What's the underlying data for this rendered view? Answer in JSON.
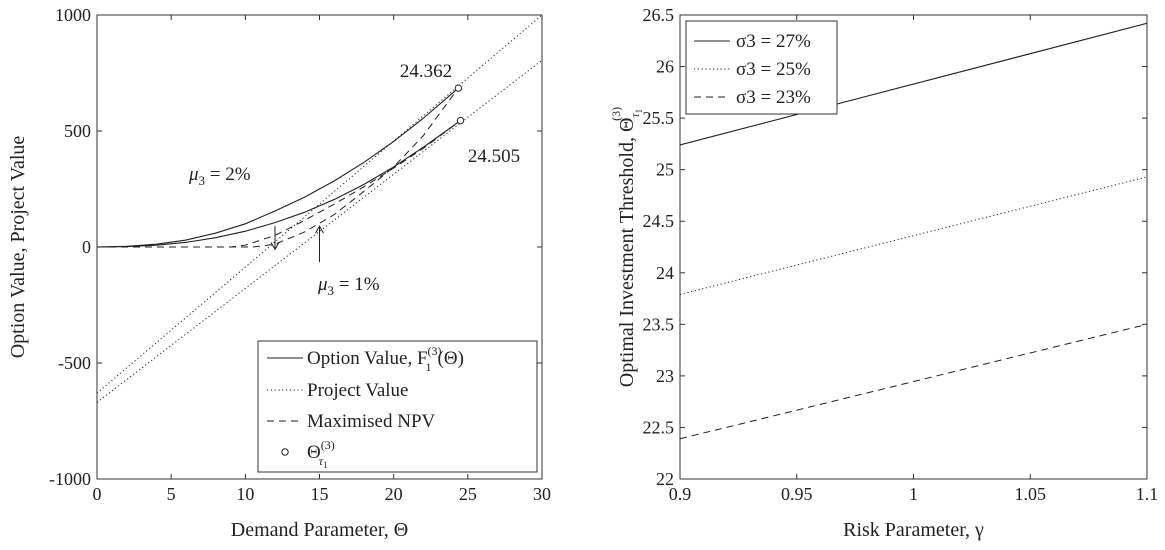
{
  "chart_data": [
    {
      "type": "line",
      "xlabel": "Demand Parameter, Θ",
      "ylabel": "Option Value, Project Value",
      "xlim": [
        0,
        30
      ],
      "ylim": [
        -1000,
        1000
      ],
      "xticks": [
        "0",
        "5",
        "10",
        "15",
        "20",
        "25",
        "30"
      ],
      "yticks": [
        "-1000",
        "-500",
        "0",
        "500",
        "1000"
      ],
      "grid": false,
      "legend_position": "bottom-right",
      "legend": [
        {
          "label": "Option Value, F",
          "style": "solid"
        },
        {
          "label": "Project Value",
          "style": "dotted"
        },
        {
          "label": "Maximised NPV",
          "style": "dashed"
        },
        {
          "label": "Θ",
          "style": "circle-marker"
        }
      ],
      "threshold_labels": [
        {
          "text": "24.362",
          "x": 24.362,
          "y": 685
        },
        {
          "text": "24.505",
          "x": 24.505,
          "y": 545
        }
      ],
      "annotations": [
        {
          "text": "μ3 = 2%",
          "arrow_from": [
            12,
            90
          ],
          "arrow_to": [
            12,
            -10
          ]
        },
        {
          "text": "μ3 = 1%",
          "arrow_from": [
            15,
            -65
          ],
          "arrow_to": [
            15,
            90
          ]
        }
      ],
      "series": [
        {
          "style": "solid",
          "points": [
            [
              0,
              0
            ],
            [
              2,
              3
            ],
            [
              4,
              12
            ],
            [
              6,
              30
            ],
            [
              8,
              60
            ],
            [
              10,
              100
            ],
            [
              12,
              155
            ],
            [
              14,
              215
            ],
            [
              16,
              285
            ],
            [
              18,
              365
            ],
            [
              20,
              455
            ],
            [
              22,
              555
            ],
            [
              24.362,
              685
            ]
          ]
        },
        {
          "style": "solid",
          "points": [
            [
              0,
              0
            ],
            [
              2,
              2
            ],
            [
              4,
              8
            ],
            [
              6,
              20
            ],
            [
              8,
              40
            ],
            [
              10,
              68
            ],
            [
              12,
              105
            ],
            [
              14,
              150
            ],
            [
              16,
              205
            ],
            [
              18,
              270
            ],
            [
              20,
              345
            ],
            [
              22,
              430
            ],
            [
              24.505,
              545
            ]
          ]
        },
        {
          "style": "dotted",
          "points": [
            [
              0,
              -630
            ],
            [
              30,
              1000
            ]
          ]
        },
        {
          "style": "dotted",
          "points": [
            [
              0,
              -670
            ],
            [
              30,
              805
            ]
          ]
        },
        {
          "style": "dashed",
          "points": [
            [
              0,
              0
            ],
            [
              10.5,
              0
            ],
            [
              12,
              12
            ],
            [
              14,
              65
            ],
            [
              16,
              140
            ],
            [
              18,
              240
            ],
            [
              20,
              345
            ],
            [
              22,
              480
            ],
            [
              24.362,
              685
            ]
          ]
        },
        {
          "style": "dashed",
          "points": [
            [
              0,
              0
            ],
            [
              9,
              0
            ],
            [
              10,
              8
            ],
            [
              12,
              50
            ],
            [
              14,
              115
            ],
            [
              16,
              185
            ],
            [
              18,
              260
            ],
            [
              20,
              340
            ],
            [
              22,
              425
            ],
            [
              24.505,
              545
            ]
          ]
        }
      ],
      "markers": [
        [
          24.362,
          685
        ],
        [
          24.505,
          545
        ]
      ]
    },
    {
      "type": "line",
      "xlabel": "Risk Parameter, γ",
      "ylabel": "Optimal Investment Threshold, Θ",
      "xlim": [
        0.9,
        1.1
      ],
      "ylim": [
        22,
        26.5
      ],
      "xticks": [
        "0.9",
        "0.95",
        "1",
        "1.05",
        "1.1"
      ],
      "yticks": [
        "22",
        "22.5",
        "23",
        "23.5",
        "24",
        "24.5",
        "25",
        "25.5",
        "26",
        "26.5"
      ],
      "grid": false,
      "legend_position": "top-left",
      "legend": [
        {
          "label": "σ3 = 27%",
          "style": "solid"
        },
        {
          "label": "σ3 = 25%",
          "style": "dotted"
        },
        {
          "label": "σ3 = 23%",
          "style": "dashed"
        }
      ],
      "series": [
        {
          "name": "σ3 = 27%",
          "style": "solid",
          "x": [
            0.9,
            1.1
          ],
          "values": [
            25.24,
            26.42
          ]
        },
        {
          "name": "σ3 = 25%",
          "style": "dotted",
          "x": [
            0.9,
            1.1
          ],
          "values": [
            23.79,
            24.93
          ]
        },
        {
          "name": "σ3 = 23%",
          "style": "dashed",
          "x": [
            0.9,
            1.1
          ],
          "values": [
            22.39,
            23.5
          ]
        }
      ]
    }
  ]
}
